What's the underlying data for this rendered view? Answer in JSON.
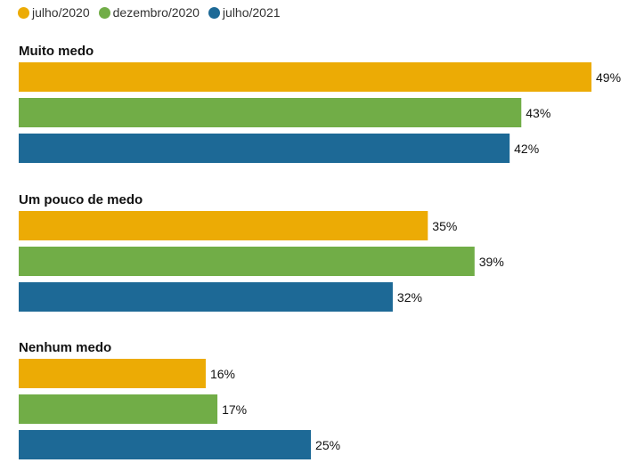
{
  "chart_data": {
    "type": "bar",
    "orientation": "horizontal",
    "categories": [
      "Muito medo",
      "Um pouco de medo",
      "Nenhum medo"
    ],
    "series": [
      {
        "name": "julho/2020",
        "color": "#ECAB05",
        "values": [
          49,
          35,
          16
        ]
      },
      {
        "name": "dezembro/2020",
        "color": "#71AD47",
        "values": [
          43,
          39,
          17
        ]
      },
      {
        "name": "julho/2021",
        "color": "#1D6996",
        "values": [
          42,
          32,
          25
        ]
      }
    ],
    "value_suffix": "%",
    "xlim": [
      0,
      49
    ],
    "grid": false,
    "legend_position": "top-left"
  }
}
